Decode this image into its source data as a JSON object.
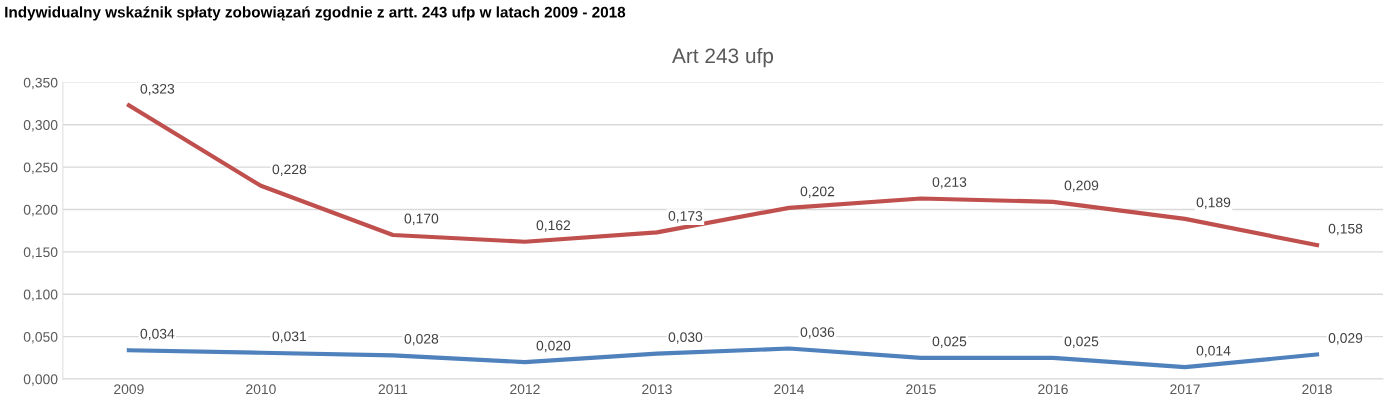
{
  "chart_data": {
    "type": "line",
    "title": "Art 243 ufp",
    "subtitle": "Indywidualny wskaźnik spłaty zobowiązań zgodnie z artt. 243 ufp w latach 2009 - 2018",
    "categories": [
      "2009",
      "2010",
      "2011",
      "2012",
      "2013",
      "2014",
      "2015",
      "2016",
      "2017",
      "2018"
    ],
    "series": [
      {
        "color": "#c0504d",
        "values": [
          0.323,
          0.228,
          0.17,
          0.162,
          0.173,
          0.202,
          0.213,
          0.209,
          0.189,
          0.158
        ],
        "value_labels": [
          "0,323",
          "0,228",
          "0,170",
          "0,162",
          "0,173",
          "0,202",
          "0,213",
          "0,209",
          "0,189",
          "0,158"
        ]
      },
      {
        "color": "#4f81bd",
        "values": [
          0.034,
          0.031,
          0.028,
          0.02,
          0.03,
          0.036,
          0.025,
          0.025,
          0.014,
          0.029
        ],
        "value_labels": [
          "0,034",
          "0,031",
          "0,028",
          "0,020",
          "0,030",
          "0,036",
          "0,025",
          "0,025",
          "0,014",
          "0,029"
        ]
      }
    ],
    "ylim": [
      0,
      0.35
    ],
    "yticks": [
      {
        "value": 0,
        "label": "0,000"
      },
      {
        "value": 0.05,
        "label": "0,050"
      },
      {
        "value": 0.1,
        "label": "0,100"
      },
      {
        "value": 0.15,
        "label": "0,150"
      },
      {
        "value": 0.2,
        "label": "0,200"
      },
      {
        "value": 0.25,
        "label": "0,250"
      },
      {
        "value": 0.3,
        "label": "0,300"
      },
      {
        "value": 0.35,
        "label": "0,350"
      }
    ],
    "grid": "y",
    "marker": "none",
    "line_style": "solid"
  }
}
